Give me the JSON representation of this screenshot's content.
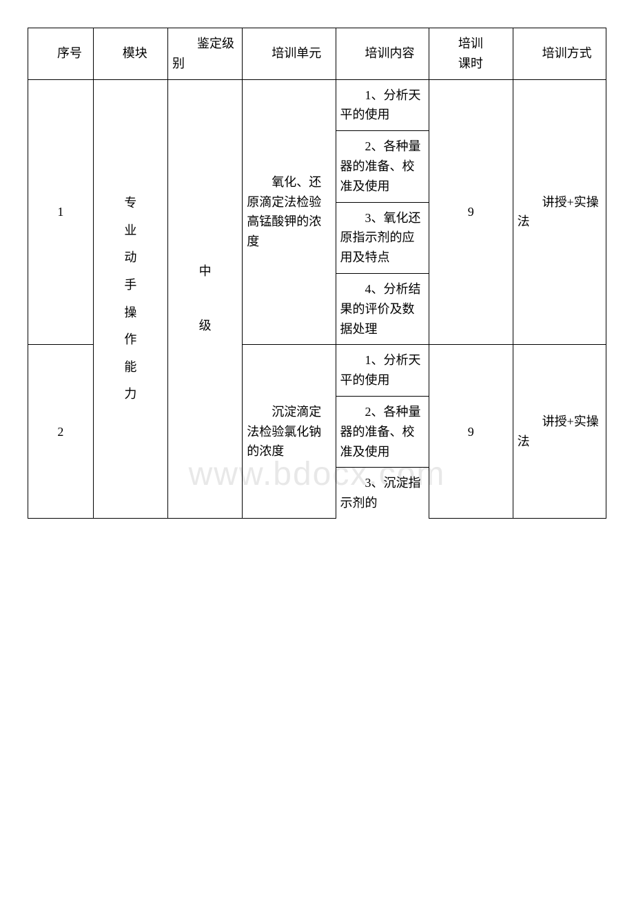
{
  "watermark": "www.bdocx.com",
  "header": {
    "seq": "序号",
    "module": "模块",
    "level": "鉴定级别",
    "unit": "培训单元",
    "content": "培训内容",
    "hours_line1": "培训",
    "hours_line2": "课时",
    "method": "培训方式"
  },
  "module_text": "专业动手操作能力",
  "level_text_1": "中",
  "level_text_2": "级",
  "rows": [
    {
      "seq": "1",
      "unit": "氧化、还原滴定法检验高锰酸钾的浓度",
      "contents": [
        "1、分析天平的使用",
        "2、各种量器的准备、校准及使用",
        "3、氧化还原指示剂的应用及特点",
        "4、分析结果的评价及数据处理"
      ],
      "hours": "9",
      "method": "讲授+实操法"
    },
    {
      "seq": "2",
      "unit": "沉淀滴定法检验氯化钠的浓度",
      "contents": [
        "1、分析天平的使用",
        "2、各种量器的准备、校准及使用",
        "3、沉淀指示剂的"
      ],
      "hours": "9",
      "method": "讲授+实操法"
    }
  ]
}
